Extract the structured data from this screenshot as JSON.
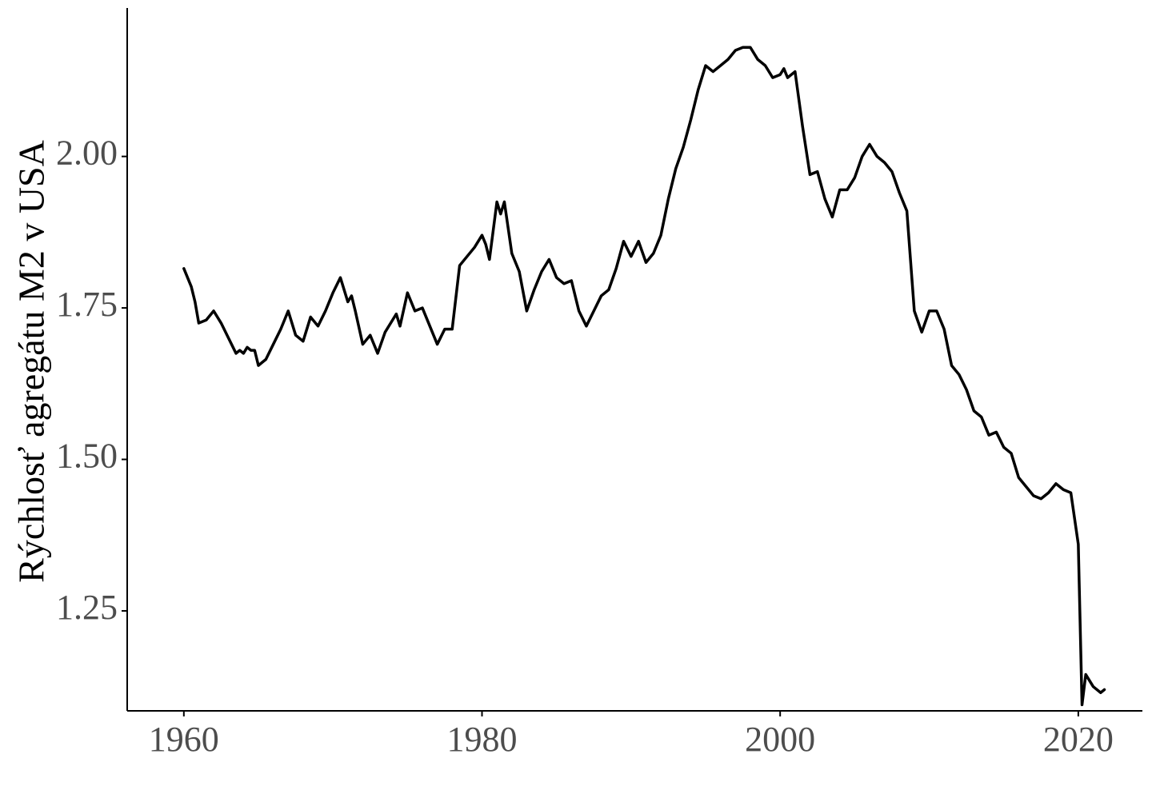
{
  "chart_data": {
    "type": "line",
    "title": "",
    "xlabel": "",
    "ylabel": "Rýchlosť agregátu M2 v USA",
    "xlim": [
      1956.2,
      2024.3
    ],
    "ylim": [
      1.085,
      2.245
    ],
    "x_ticks": [
      1960,
      1980,
      2000,
      2020
    ],
    "x_tick_labels": [
      "1960",
      "1980",
      "2000",
      "2020"
    ],
    "y_ticks": [
      1.25,
      1.5,
      1.75,
      2.0
    ],
    "y_tick_labels": [
      "1.25",
      "1.50",
      "1.75",
      "2.00"
    ],
    "grid": false,
    "legend": "none",
    "line_color": "#000000",
    "series": [
      {
        "x": [
          1960.0,
          1960.5,
          1960.75,
          1961.0,
          1961.5,
          1962.0,
          1962.5,
          1963.0,
          1963.5,
          1963.75,
          1964.0,
          1964.25,
          1964.5,
          1964.75,
          1965.0,
          1965.25,
          1965.5,
          1966.0,
          1966.5,
          1967.0,
          1967.5,
          1968.0,
          1968.5,
          1969.0,
          1969.5,
          1970.0,
          1970.5,
          1971.0,
          1971.25,
          1971.5,
          1972.0,
          1972.5,
          1973.0,
          1973.5,
          1974.0,
          1974.25,
          1974.5,
          1975.0,
          1975.5,
          1976.0,
          1976.5,
          1977.0,
          1977.5,
          1978.0,
          1978.5,
          1979.0,
          1979.5,
          1980.0,
          1980.25,
          1980.5,
          1981.0,
          1981.25,
          1981.5,
          1982.0,
          1982.5,
          1983.0,
          1983.5,
          1984.0,
          1984.5,
          1985.0,
          1985.5,
          1986.0,
          1986.5,
          1987.0,
          1987.5,
          1988.0,
          1988.5,
          1989.0,
          1989.5,
          1990.0,
          1990.5,
          1991.0,
          1991.5,
          1992.0,
          1992.5,
          1993.0,
          1993.5,
          1994.0,
          1994.5,
          1995.0,
          1995.5,
          1996.0,
          1996.5,
          1997.0,
          1997.5,
          1998.0,
          1998.5,
          1999.0,
          1999.5,
          2000.0,
          2000.25,
          2000.5,
          2001.0,
          2001.5,
          2002.0,
          2002.5,
          2003.0,
          2003.5,
          2004.0,
          2004.5,
          2005.0,
          2005.5,
          2006.0,
          2006.5,
          2007.0,
          2007.5,
          2008.0,
          2008.5,
          2009.0,
          2009.5,
          2010.0,
          2010.5,
          2011.0,
          2011.5,
          2012.0,
          2012.5,
          2013.0,
          2013.5,
          2014.0,
          2014.5,
          2015.0,
          2015.5,
          2016.0,
          2016.5,
          2017.0,
          2017.5,
          2018.0,
          2018.5,
          2019.0,
          2019.5,
          2020.0,
          2020.25,
          2020.5,
          2021.0,
          2021.5,
          2021.75
        ],
        "y": [
          1.815,
          1.785,
          1.76,
          1.725,
          1.73,
          1.745,
          1.725,
          1.7,
          1.675,
          1.68,
          1.675,
          1.685,
          1.68,
          1.68,
          1.655,
          1.66,
          1.665,
          1.69,
          1.715,
          1.745,
          1.705,
          1.695,
          1.735,
          1.72,
          1.745,
          1.775,
          1.8,
          1.76,
          1.77,
          1.745,
          1.69,
          1.705,
          1.675,
          1.71,
          1.73,
          1.74,
          1.72,
          1.775,
          1.745,
          1.75,
          1.72,
          1.69,
          1.715,
          1.715,
          1.82,
          1.835,
          1.85,
          1.87,
          1.855,
          1.83,
          1.925,
          1.905,
          1.925,
          1.84,
          1.81,
          1.745,
          1.78,
          1.81,
          1.83,
          1.8,
          1.79,
          1.795,
          1.745,
          1.72,
          1.745,
          1.77,
          1.78,
          1.815,
          1.86,
          1.835,
          1.86,
          1.825,
          1.84,
          1.87,
          1.93,
          1.98,
          2.015,
          2.06,
          2.11,
          2.15,
          2.14,
          2.15,
          2.16,
          2.175,
          2.18,
          2.18,
          2.16,
          2.15,
          2.13,
          2.135,
          2.145,
          2.13,
          2.14,
          2.05,
          1.97,
          1.975,
          1.93,
          1.9,
          1.945,
          1.945,
          1.965,
          2.0,
          2.02,
          2.0,
          1.99,
          1.975,
          1.94,
          1.91,
          1.745,
          1.71,
          1.745,
          1.745,
          1.715,
          1.655,
          1.64,
          1.615,
          1.58,
          1.57,
          1.54,
          1.545,
          1.52,
          1.51,
          1.47,
          1.455,
          1.44,
          1.435,
          1.445,
          1.46,
          1.45,
          1.445,
          1.36,
          1.095,
          1.145,
          1.125,
          1.115,
          1.12
        ]
      }
    ]
  }
}
